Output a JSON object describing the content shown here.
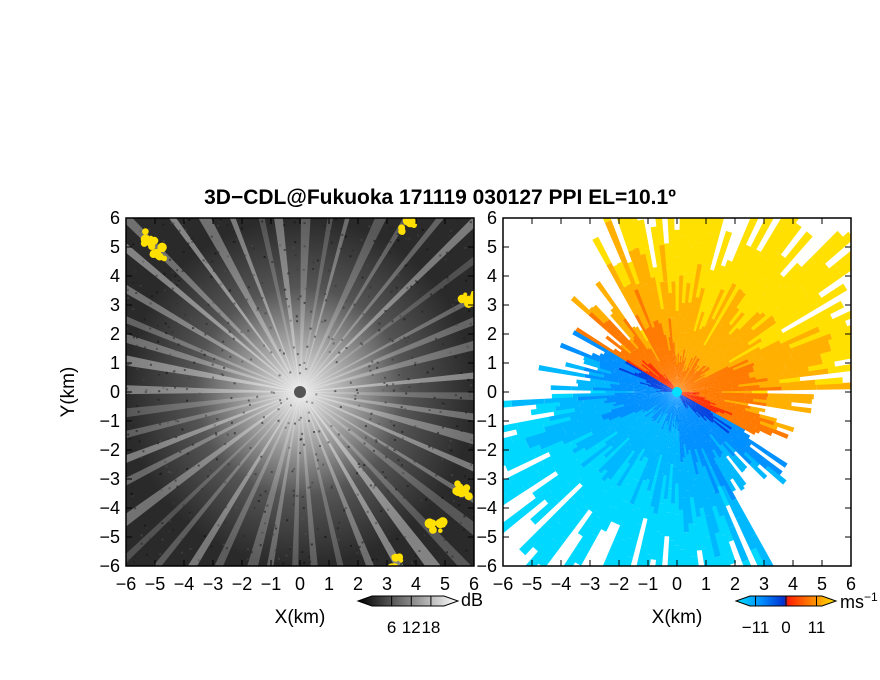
{
  "title": "3D−CDL@Fukuoka 171119 030127 PPI EL=10.1º",
  "chart_data": [
    {
      "type": "heatmap",
      "panel": "reflectivity",
      "xlabel": "X(km)",
      "ylabel": "Y(km)",
      "xlim": [
        -6,
        6
      ],
      "ylim": [
        -6,
        6
      ],
      "xticks": [
        "−6",
        "−5",
        "−4",
        "−3",
        "−2",
        "−1",
        "0",
        "1",
        "2",
        "3",
        "4",
        "5",
        "6"
      ],
      "yticks": [
        "−6",
        "−5",
        "−4",
        "−3",
        "−2",
        "−1",
        "0",
        "1",
        "2",
        "3",
        "4",
        "5",
        "6"
      ],
      "colormap": "greyscale",
      "radar_center": [
        0,
        0
      ],
      "colorbar": {
        "unit": "dB",
        "ticks": [
          "6",
          "12",
          "18"
        ],
        "range": [
          0,
          22
        ]
      },
      "high_value_color": "#ffee00",
      "high_value_regions": [
        {
          "x": -4.9,
          "y": 4.8
        },
        {
          "x": -5.2,
          "y": 5.3
        },
        {
          "x": 3.7,
          "y": 5.7
        },
        {
          "x": 5.8,
          "y": 3.2
        },
        {
          "x": 4.7,
          "y": -4.6
        },
        {
          "x": 5.6,
          "y": -3.4
        },
        {
          "x": 3.4,
          "y": -5.9
        }
      ]
    },
    {
      "type": "heatmap",
      "panel": "doppler_velocity",
      "xlabel": "X(km)",
      "ylabel": "",
      "xlim": [
        -6,
        6
      ],
      "ylim": [
        -6,
        6
      ],
      "xticks": [
        "−6",
        "−5",
        "−4",
        "−3",
        "−2",
        "−1",
        "0",
        "1",
        "2",
        "3",
        "4",
        "5",
        "6"
      ],
      "yticks": [
        "−6",
        "−5",
        "−4",
        "−3",
        "−2",
        "−1",
        "0",
        "1",
        "2",
        "3",
        "4",
        "5",
        "6"
      ],
      "colormap": "blue-cyan-red-yellow",
      "colorbar": {
        "unit": "ms",
        "unit_exp": "−1",
        "ticks": [
          "−11",
          "0",
          "11"
        ],
        "range": [
          -13,
          13
        ]
      },
      "flow_direction_deg": 60
    }
  ],
  "colors": {
    "cyan": "#00c8ff",
    "blue": "#0050ff",
    "red": "#ff2000",
    "orange": "#ff8000",
    "yellow": "#ffe000"
  }
}
